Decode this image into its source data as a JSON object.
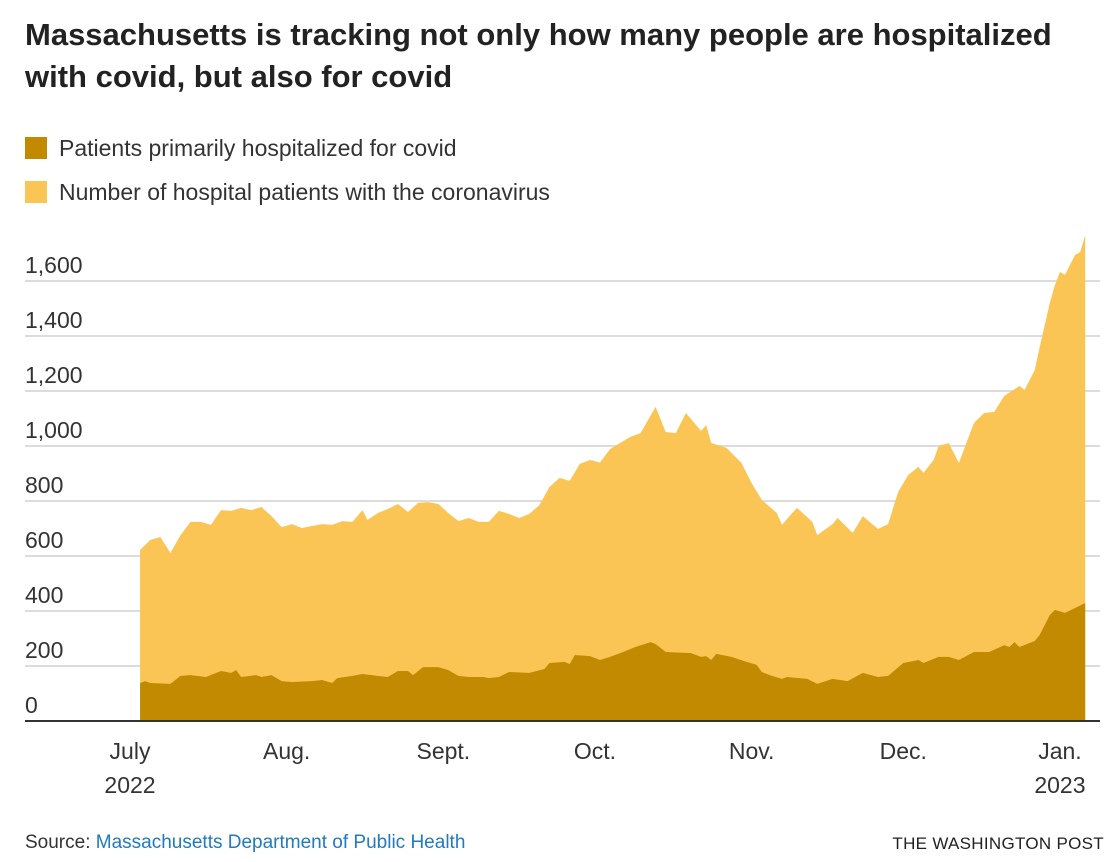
{
  "title": "Massachusetts is tracking not only how many people are hospitalized with covid, but also for covid",
  "footer": {
    "source_label": "Source:",
    "source_link": "Massachusetts Department of Public Health",
    "credit": "THE WASHINGTON POST"
  },
  "chart_data": {
    "type": "area",
    "title": "Massachusetts is tracking not only how many people are hospitalized with covid, but also for covid",
    "xlabel": "",
    "ylabel": "",
    "x_units": "days since July 1, 2022",
    "ylim": [
      0,
      1750
    ],
    "yticks": [
      0,
      200,
      400,
      600,
      800,
      1000,
      1200,
      1400,
      1600
    ],
    "ytick_labels": [
      "0",
      "200",
      "400",
      "600",
      "800",
      "1,000",
      "1,200",
      "1,400",
      "1,600"
    ],
    "xticks": [
      {
        "day": 0,
        "label": "July",
        "sublabel": "2022"
      },
      {
        "day": 31,
        "label": "Aug.",
        "sublabel": ""
      },
      {
        "day": 62,
        "label": "Sept.",
        "sublabel": ""
      },
      {
        "day": 92,
        "label": "Oct.",
        "sublabel": ""
      },
      {
        "day": 123,
        "label": "Nov.",
        "sublabel": ""
      },
      {
        "day": 153,
        "label": "Dec.",
        "sublabel": ""
      },
      {
        "day": 184,
        "label": "Jan.",
        "sublabel": "2023"
      }
    ],
    "grid": true,
    "legend_position": "top-left",
    "series": [
      {
        "name": "Number of hospital patients with the coronavirus",
        "color": "#fac555",
        "points": [
          [
            2,
            622
          ],
          [
            4,
            658
          ],
          [
            6,
            669
          ],
          [
            7,
            640
          ],
          [
            8,
            611
          ],
          [
            10,
            676
          ],
          [
            12,
            724
          ],
          [
            14,
            724
          ],
          [
            16,
            713
          ],
          [
            18,
            767
          ],
          [
            20,
            764
          ],
          [
            22,
            775
          ],
          [
            24,
            767
          ],
          [
            26,
            778
          ],
          [
            28,
            745
          ],
          [
            30,
            705
          ],
          [
            32,
            716
          ],
          [
            34,
            702
          ],
          [
            36,
            709
          ],
          [
            38,
            716
          ],
          [
            40,
            713
          ],
          [
            42,
            727
          ],
          [
            44,
            724
          ],
          [
            46,
            767
          ],
          [
            47,
            731
          ],
          [
            49,
            756
          ],
          [
            51,
            771
          ],
          [
            53,
            789
          ],
          [
            55,
            760
          ],
          [
            57,
            793
          ],
          [
            59,
            796
          ],
          [
            61,
            789
          ],
          [
            63,
            756
          ],
          [
            65,
            727
          ],
          [
            67,
            738
          ],
          [
            69,
            724
          ],
          [
            71,
            724
          ],
          [
            73,
            764
          ],
          [
            75,
            753
          ],
          [
            77,
            738
          ],
          [
            79,
            753
          ],
          [
            81,
            785
          ],
          [
            83,
            851
          ],
          [
            85,
            884
          ],
          [
            87,
            873
          ],
          [
            89,
            935
          ],
          [
            91,
            949
          ],
          [
            93,
            940
          ],
          [
            95,
            989
          ],
          [
            99,
            1033
          ],
          [
            101,
            1047
          ],
          [
            104,
            1142
          ],
          [
            106,
            1051
          ],
          [
            108,
            1047
          ],
          [
            110,
            1120
          ],
          [
            113,
            1055
          ],
          [
            114,
            1076
          ],
          [
            115,
            1011
          ],
          [
            118,
            993
          ],
          [
            121,
            938
          ],
          [
            123,
            865
          ],
          [
            125,
            804
          ],
          [
            128,
            756
          ],
          [
            129,
            713
          ],
          [
            131,
            756
          ],
          [
            132,
            775
          ],
          [
            135,
            724
          ],
          [
            136,
            676
          ],
          [
            139,
            716
          ],
          [
            140,
            738
          ],
          [
            143,
            684
          ],
          [
            145,
            745
          ],
          [
            148,
            698
          ],
          [
            150,
            716
          ],
          [
            152,
            833
          ],
          [
            154,
            895
          ],
          [
            156,
            924
          ],
          [
            157,
            902
          ],
          [
            159,
            949
          ],
          [
            160,
            1000
          ],
          [
            162,
            1011
          ],
          [
            164,
            938
          ],
          [
            167,
            1084
          ],
          [
            169,
            1120
          ],
          [
            171,
            1124
          ],
          [
            173,
            1182
          ],
          [
            176,
            1218
          ],
          [
            177,
            1204
          ],
          [
            179,
            1276
          ],
          [
            180,
            1360
          ],
          [
            182,
            1520
          ],
          [
            183,
            1585
          ],
          [
            184,
            1633
          ],
          [
            185,
            1622
          ],
          [
            187,
            1695
          ],
          [
            188,
            1705
          ],
          [
            189,
            1767
          ]
        ]
      },
      {
        "name": "Patients primarily hospitalized for covid",
        "color": "#c18a00",
        "points": [
          [
            2,
            138
          ],
          [
            3,
            145
          ],
          [
            4,
            138
          ],
          [
            8,
            135
          ],
          [
            10,
            164
          ],
          [
            12,
            167
          ],
          [
            15,
            160
          ],
          [
            18,
            182
          ],
          [
            20,
            175
          ],
          [
            21,
            185
          ],
          [
            22,
            160
          ],
          [
            25,
            167
          ],
          [
            26,
            160
          ],
          [
            28,
            167
          ],
          [
            30,
            145
          ],
          [
            32,
            142
          ],
          [
            36,
            145
          ],
          [
            38,
            149
          ],
          [
            40,
            138
          ],
          [
            41,
            156
          ],
          [
            44,
            164
          ],
          [
            46,
            171
          ],
          [
            49,
            164
          ],
          [
            51,
            160
          ],
          [
            53,
            182
          ],
          [
            55,
            182
          ],
          [
            56,
            167
          ],
          [
            58,
            196
          ],
          [
            61,
            196
          ],
          [
            63,
            185
          ],
          [
            65,
            164
          ],
          [
            67,
            160
          ],
          [
            70,
            160
          ],
          [
            71,
            156
          ],
          [
            73,
            160
          ],
          [
            75,
            178
          ],
          [
            79,
            175
          ],
          [
            82,
            189
          ],
          [
            83,
            211
          ],
          [
            86,
            215
          ],
          [
            87,
            207
          ],
          [
            88,
            240
          ],
          [
            91,
            236
          ],
          [
            93,
            222
          ],
          [
            95,
            233
          ],
          [
            97,
            247
          ],
          [
            100,
            269
          ],
          [
            103,
            287
          ],
          [
            104,
            280
          ],
          [
            106,
            251
          ],
          [
            111,
            247
          ],
          [
            113,
            233
          ],
          [
            114,
            236
          ],
          [
            115,
            222
          ],
          [
            116,
            244
          ],
          [
            119,
            233
          ],
          [
            122,
            215
          ],
          [
            124,
            204
          ],
          [
            125,
            178
          ],
          [
            127,
            164
          ],
          [
            129,
            153
          ],
          [
            130,
            160
          ],
          [
            134,
            153
          ],
          [
            136,
            135
          ],
          [
            139,
            153
          ],
          [
            142,
            145
          ],
          [
            145,
            175
          ],
          [
            148,
            160
          ],
          [
            150,
            164
          ],
          [
            153,
            211
          ],
          [
            155,
            218
          ],
          [
            156,
            222
          ],
          [
            157,
            211
          ],
          [
            160,
            233
          ],
          [
            162,
            233
          ],
          [
            164,
            222
          ],
          [
            167,
            251
          ],
          [
            170,
            251
          ],
          [
            173,
            276
          ],
          [
            174,
            269
          ],
          [
            175,
            287
          ],
          [
            176,
            269
          ],
          [
            179,
            291
          ],
          [
            180,
            313
          ],
          [
            182,
            385
          ],
          [
            183,
            404
          ],
          [
            185,
            393
          ],
          [
            187,
            411
          ],
          [
            189,
            429
          ]
        ]
      }
    ]
  }
}
